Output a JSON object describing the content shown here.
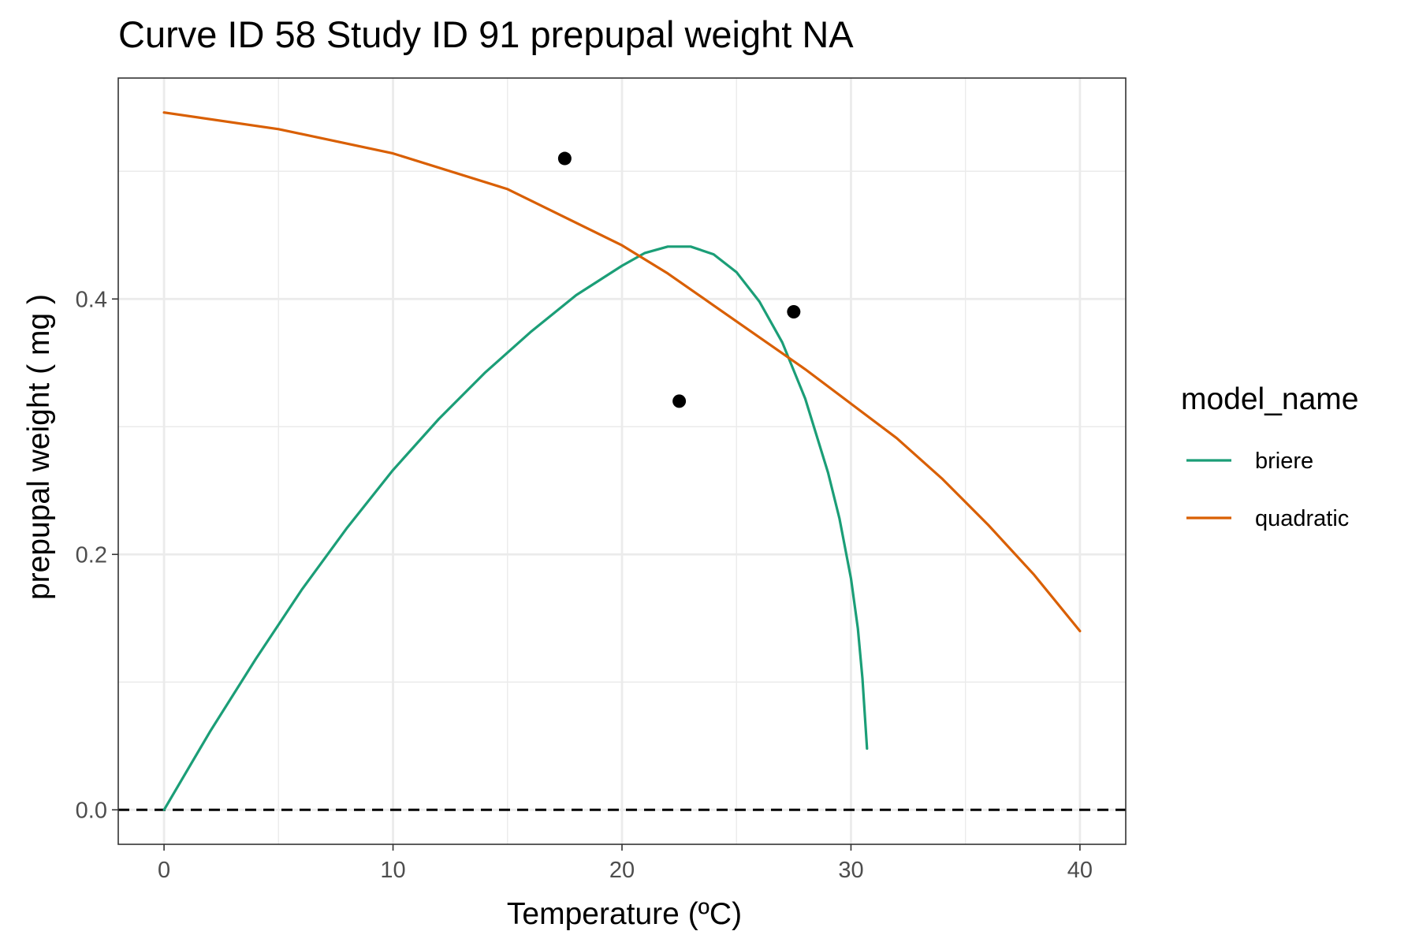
{
  "chart_data": {
    "type": "line",
    "title": "Curve ID 58 Study ID 91 prepupal weight NA",
    "xlabel": "Temperature (ºC)",
    "ylabel": "prepupal weight ( mg )",
    "xlim": [
      -2,
      42
    ],
    "ylim": [
      -0.027,
      0.573
    ],
    "x_ticks": [
      0,
      10,
      20,
      30,
      40
    ],
    "x_tick_labels": [
      "0",
      "10",
      "20",
      "30",
      "40"
    ],
    "y_ticks": [
      0.0,
      0.2,
      0.4
    ],
    "y_tick_labels": [
      "0.0",
      "0.2",
      "0.4"
    ],
    "grid": true,
    "reference_line": {
      "y": 0,
      "style": "dashed",
      "color": "#000000"
    },
    "legend": {
      "title": "model_name",
      "position": "right",
      "entries": [
        {
          "label": "briere",
          "color": "#1b9e77"
        },
        {
          "label": "quadratic",
          "color": "#d95f02"
        }
      ]
    },
    "points": [
      {
        "x": 17.5,
        "y": 0.51
      },
      {
        "x": 22.5,
        "y": 0.32
      },
      {
        "x": 27.5,
        "y": 0.39
      }
    ],
    "series": [
      {
        "name": "briere",
        "color": "#1b9e77",
        "x": [
          0,
          2,
          4,
          6,
          8,
          10,
          12,
          14,
          16,
          18,
          20,
          21,
          22,
          23,
          24,
          25,
          26,
          27,
          28,
          29,
          29.5,
          30,
          30.3,
          30.5,
          30.7
        ],
        "y": [
          0.0,
          0.061,
          0.118,
          0.172,
          0.221,
          0.266,
          0.306,
          0.342,
          0.374,
          0.403,
          0.426,
          0.436,
          0.441,
          0.441,
          0.435,
          0.421,
          0.398,
          0.366,
          0.322,
          0.264,
          0.228,
          0.181,
          0.142,
          0.103,
          0.048
        ]
      },
      {
        "name": "quadratic",
        "color": "#d95f02",
        "x": [
          0,
          5,
          10,
          15,
          20,
          22,
          24,
          26,
          28,
          30,
          32,
          34,
          36,
          38,
          40
        ],
        "y": [
          0.546,
          0.533,
          0.514,
          0.486,
          0.442,
          0.42,
          0.395,
          0.37,
          0.345,
          0.318,
          0.291,
          0.259,
          0.223,
          0.184,
          0.14
        ]
      }
    ]
  }
}
